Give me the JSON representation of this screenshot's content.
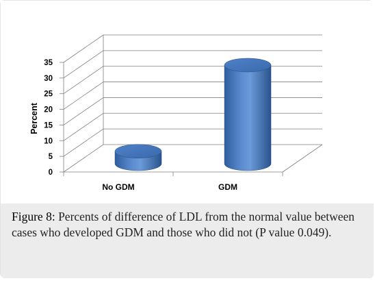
{
  "chart_data": {
    "type": "bar",
    "categories": [
      "No GDM",
      "GDM"
    ],
    "values": [
      4,
      31.5
    ],
    "ylabel": "Percent",
    "xlabel": "",
    "ylim": [
      0,
      35
    ],
    "yticks": [
      "0",
      "5",
      "10",
      "15",
      "20",
      "25",
      "30",
      "35"
    ],
    "bar_style": "3d-cylinder",
    "bar_color": "#4a7cc0",
    "grid": true
  },
  "caption": {
    "label": "Figure 8:",
    "text": " Percents of difference of LDL from the normal value between cases who developed GDM and those who did not (P value 0.049)."
  }
}
